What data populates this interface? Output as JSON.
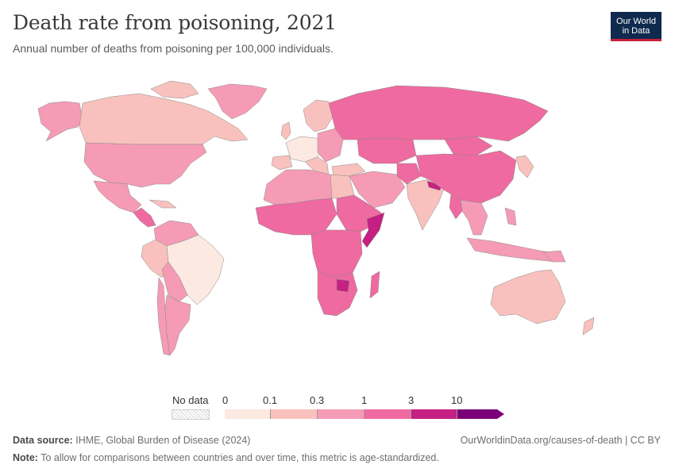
{
  "header": {
    "title": "Death rate from poisoning, 2021",
    "subtitle": "Annual number of deaths from poisoning per 100,000 individuals."
  },
  "logo": {
    "line1": "Our World",
    "line2": "in Data",
    "bg": "#0f2a4e",
    "accent": "#c8203a"
  },
  "legend": {
    "no_data_label": "No data",
    "ticks": [
      "0",
      "0.1",
      "0.3",
      "1",
      "3",
      "10"
    ],
    "colors": [
      "#fce9e1",
      "#f9c1bd",
      "#f59bb6",
      "#ef6aa0",
      "#c52082",
      "#7a0177"
    ]
  },
  "footer": {
    "source_label": "Data source:",
    "source_text": "IHME, Global Burden of Disease (2024)",
    "url_text": "OurWorldinData.org/causes-of-death | CC BY",
    "note_label": "Note:",
    "note_text": "To allow for comparisons between countries and over time, this metric is age-standardized."
  }
}
